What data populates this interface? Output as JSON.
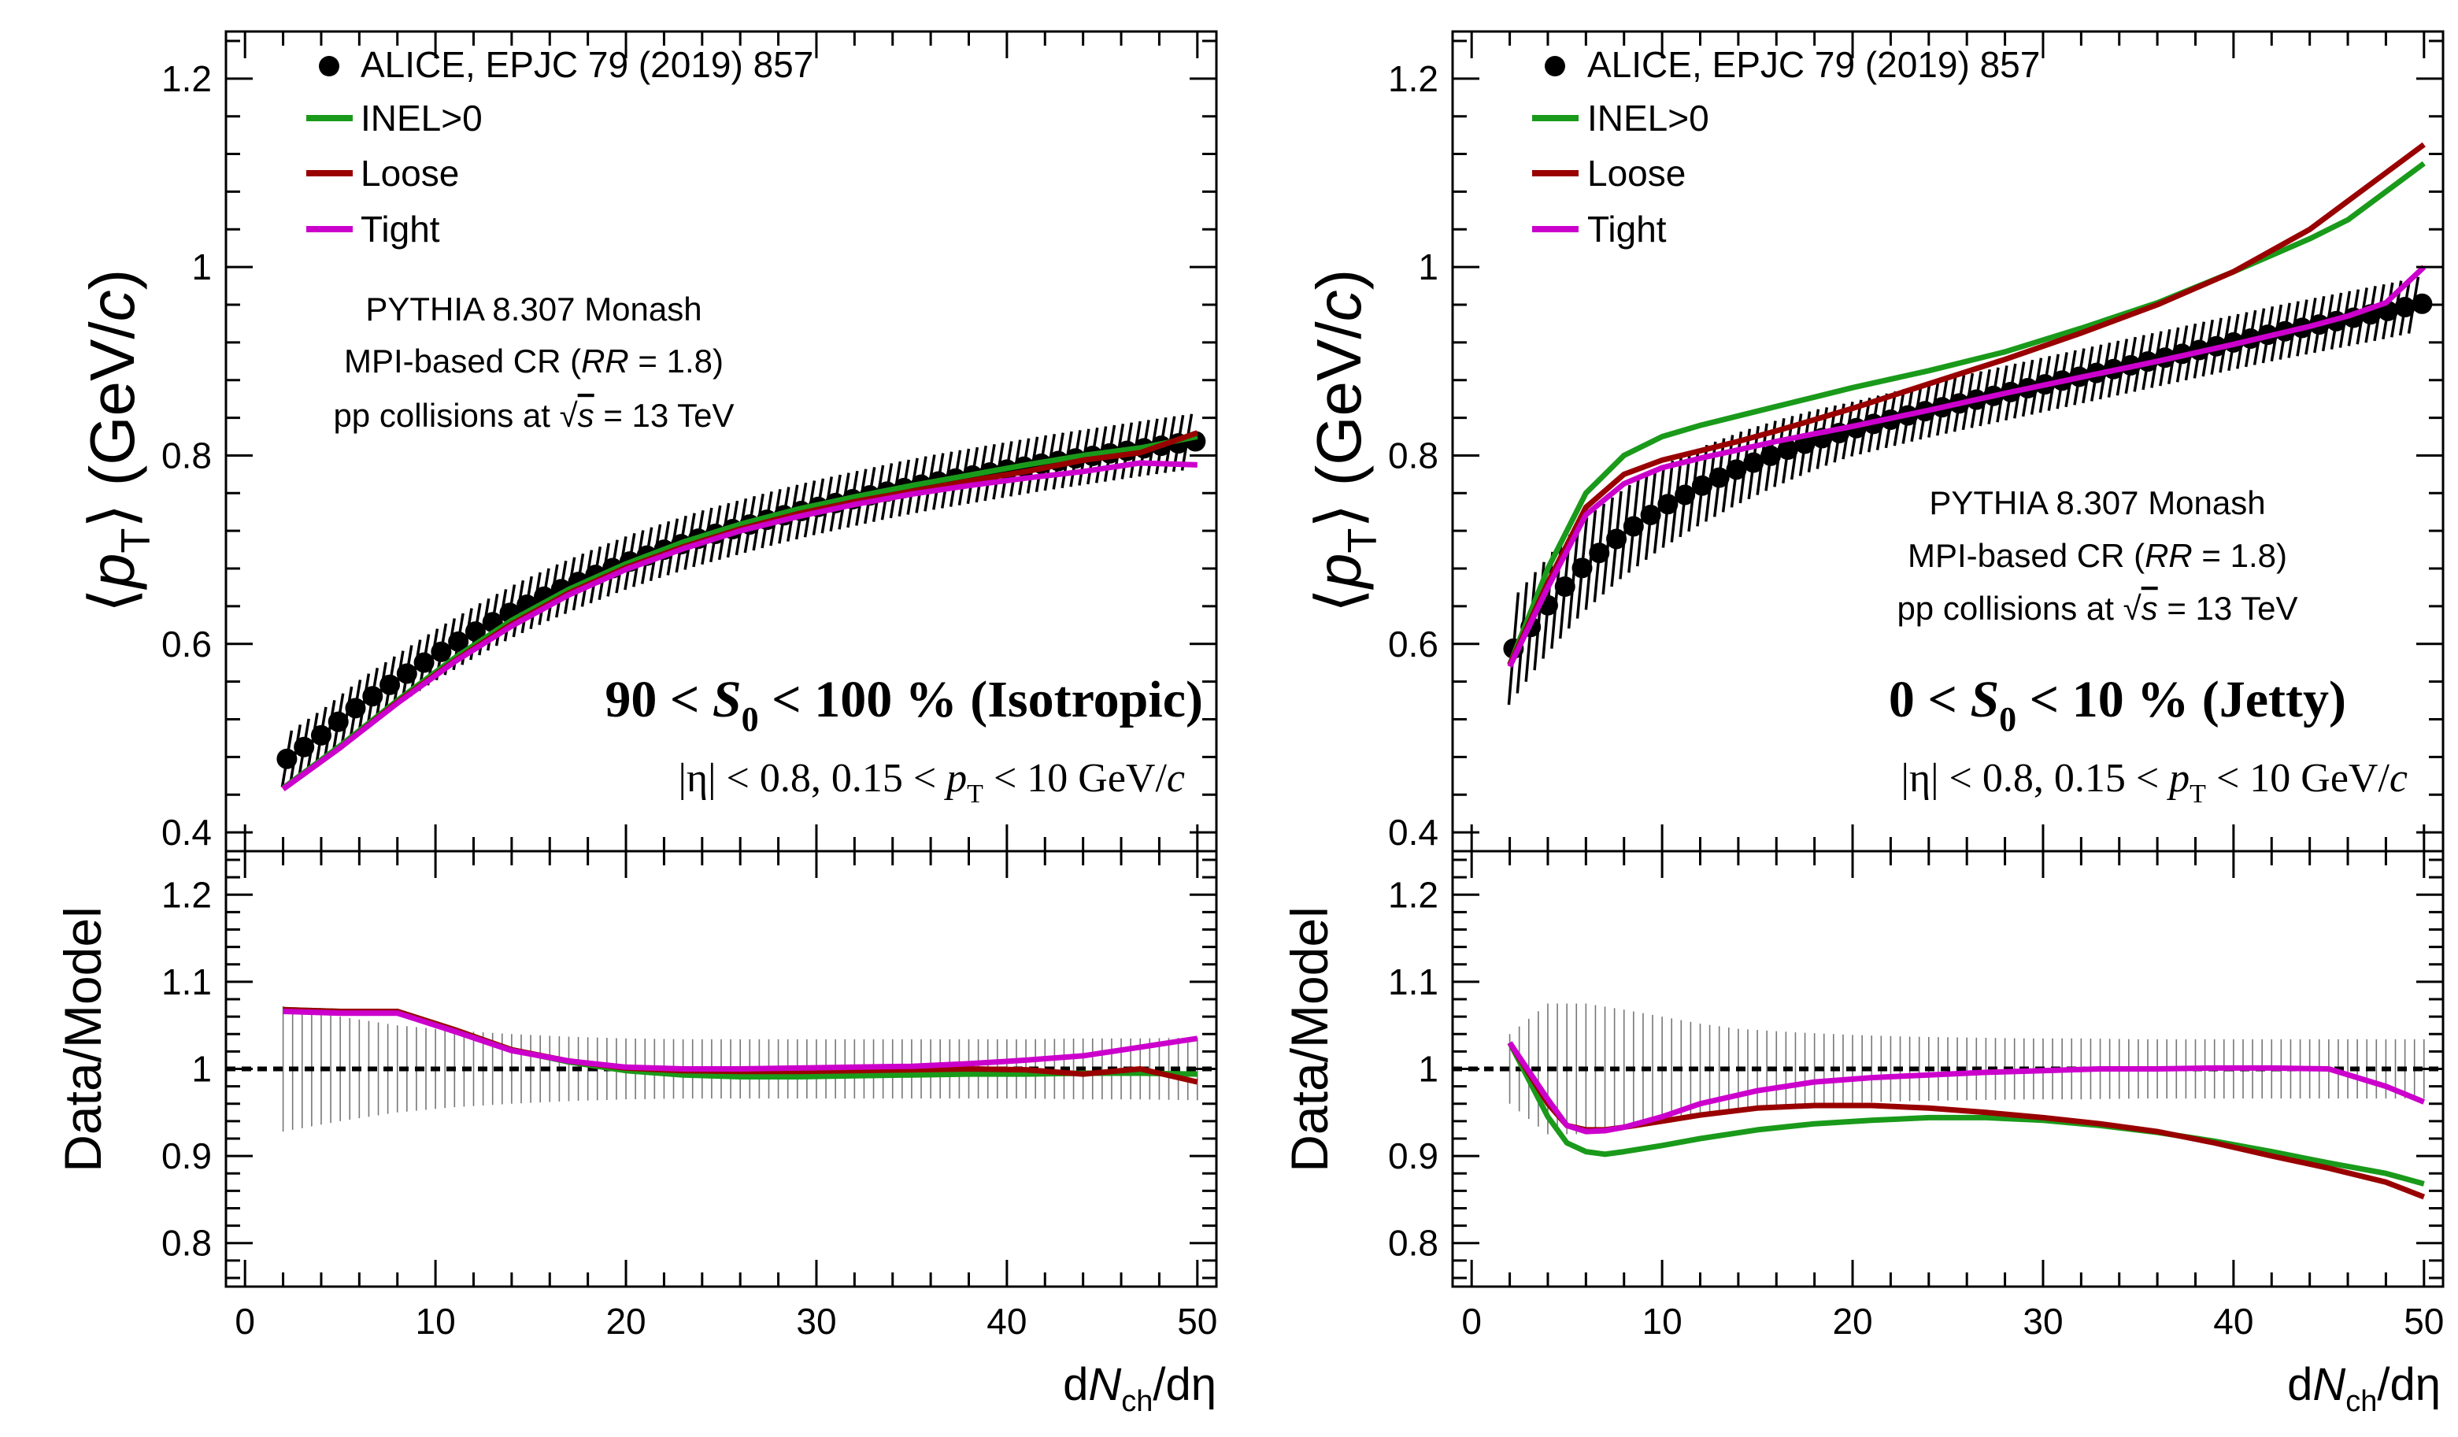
{
  "figure": {
    "left": {
      "legend": {
        "data": "ALICE, EPJC 79 (2019) 857",
        "inel": "INEL>0",
        "loose": "Loose",
        "tight": "Tight"
      },
      "info": {
        "line1": "PYTHIA 8.307 Monash",
        "line2_pre": "MPI-based CR (",
        "line2_rr": "RR",
        "line2_post": " = 1.8)",
        "line3_pre": "pp collisions at ",
        "line3_sqrt": "√",
        "line3_s": "s",
        "line3_post": " = 13 TeV"
      },
      "selection": {
        "pre": "90 < ",
        "sym": "S",
        "sub": "0",
        "post": " < 100 % (Isotropic)"
      },
      "cuts": {
        "eta": "|η| < 0.8, 0.15 < ",
        "pt": "p",
        "ptsub": "T",
        "post": " < 10 GeV/",
        "c": "c"
      }
    },
    "right": {
      "legend": {
        "data": "ALICE, EPJC 79 (2019) 857",
        "inel": "INEL>0",
        "loose": "Loose",
        "tight": "Tight"
      },
      "info": {
        "line1": "PYTHIA 8.307 Monash",
        "line2_pre": "MPI-based CR (",
        "line2_rr": "RR",
        "line2_post": " = 1.8)",
        "line3_pre": "pp collisions at ",
        "line3_sqrt": "√",
        "line3_s": "s",
        "line3_post": " = 13 TeV"
      },
      "selection": {
        "pre": "0 < ",
        "sym": "S",
        "sub": "0",
        "post": " < 10 % (Jetty)"
      },
      "cuts": {
        "eta": "|η| < 0.8, 0.15 < ",
        "pt": "p",
        "ptsub": "T",
        "post": " < 10 GeV/",
        "c": "c"
      }
    },
    "ylabel_top": {
      "open": "⟨",
      "p": "p",
      "sub": "T",
      "close": "⟩ (GeV/",
      "c": "c",
      "end": ")"
    },
    "ylabel_bottom": "Data/Model",
    "xlabel": {
      "d1": "d",
      "n": "N",
      "sub": "ch",
      "rest": "/dη"
    }
  },
  "colors": {
    "data": "#000000",
    "inel": "#1a9a1a",
    "loose": "#990000",
    "tight": "#cc00cc",
    "band": "#777777"
  },
  "chart_data": [
    {
      "type": "line",
      "panel": "left-top",
      "xlabel": "dNch/dη",
      "ylabel": "⟨pT⟩ (GeV/c)",
      "xlim": [
        -1,
        51
      ],
      "ylim": [
        0.38,
        1.25
      ],
      "xticks": [
        "0",
        "10",
        "20",
        "30",
        "40",
        "50"
      ],
      "yticks": [
        "0.4",
        "0.6",
        "0.8",
        "1",
        "1.2"
      ],
      "data_points": {
        "x": [
          2.2,
          4,
          6,
          8,
          10,
          12,
          14,
          16,
          18,
          20,
          22,
          24,
          26,
          28,
          30,
          32,
          34,
          36,
          38,
          40,
          42,
          44,
          46,
          48,
          49.8
        ],
        "y": [
          0.478,
          0.503,
          0.535,
          0.562,
          0.588,
          0.612,
          0.634,
          0.653,
          0.67,
          0.686,
          0.7,
          0.713,
          0.724,
          0.735,
          0.745,
          0.754,
          0.763,
          0.771,
          0.778,
          0.785,
          0.792,
          0.798,
          0.804,
          0.81,
          0.815
        ],
        "err": 0.03
      },
      "series": [
        {
          "name": "INEL>0",
          "x": [
            2,
            5,
            8,
            11,
            14,
            17,
            20,
            23,
            26,
            29,
            32,
            35,
            38,
            41,
            44,
            47,
            50
          ],
          "y": [
            0.447,
            0.492,
            0.54,
            0.585,
            0.625,
            0.658,
            0.685,
            0.708,
            0.727,
            0.743,
            0.756,
            0.768,
            0.779,
            0.79,
            0.8,
            0.808,
            0.82
          ]
        },
        {
          "name": "Loose",
          "x": [
            2,
            5,
            8,
            11,
            14,
            17,
            20,
            23,
            26,
            29,
            32,
            35,
            38,
            41,
            44,
            47,
            50
          ],
          "y": [
            0.446,
            0.49,
            0.538,
            0.582,
            0.621,
            0.654,
            0.681,
            0.703,
            0.722,
            0.738,
            0.751,
            0.762,
            0.773,
            0.783,
            0.795,
            0.803,
            0.824
          ]
        },
        {
          "name": "Tight",
          "x": [
            2,
            5,
            8,
            11,
            14,
            17,
            20,
            23,
            26,
            29,
            32,
            35,
            38,
            41,
            44,
            47,
            50
          ],
          "y": [
            0.446,
            0.49,
            0.537,
            0.581,
            0.619,
            0.652,
            0.679,
            0.701,
            0.72,
            0.735,
            0.748,
            0.759,
            0.768,
            0.776,
            0.783,
            0.792,
            0.79
          ]
        }
      ]
    },
    {
      "type": "line",
      "panel": "left-bottom",
      "xlabel": "dNch/dη",
      "ylabel": "Data/Model",
      "xlim": [
        -1,
        51
      ],
      "ylim": [
        0.75,
        1.25
      ],
      "xticks": [
        "0",
        "10",
        "20",
        "30",
        "40",
        "50"
      ],
      "yticks": [
        "0.8",
        "0.9",
        "1",
        "1.1",
        "1.2"
      ],
      "reference": 1.0,
      "band_err": [
        0.072,
        0.06,
        0.05,
        0.044,
        0.04,
        0.037,
        0.035,
        0.034,
        0.034,
        0.034,
        0.034,
        0.034,
        0.034,
        0.034,
        0.035,
        0.035,
        0.036
      ],
      "band_x": [
        2,
        5,
        8,
        11,
        14,
        17,
        20,
        23,
        26,
        29,
        32,
        35,
        38,
        41,
        44,
        47,
        50
      ],
      "series": [
        {
          "name": "INEL>0",
          "x": [
            2,
            5,
            8,
            11,
            14,
            17,
            20,
            23,
            26,
            29,
            32,
            35,
            38,
            41,
            44,
            47,
            50
          ],
          "y": [
            1.068,
            1.066,
            1.066,
            1.045,
            1.022,
            1.008,
            0.998,
            0.993,
            0.991,
            0.991,
            0.992,
            0.993,
            0.994,
            0.994,
            0.995,
            0.995,
            0.994
          ]
        },
        {
          "name": "Loose",
          "x": [
            2,
            5,
            8,
            11,
            14,
            17,
            20,
            23,
            26,
            29,
            32,
            35,
            38,
            41,
            44,
            47,
            50
          ],
          "y": [
            1.068,
            1.066,
            1.066,
            1.045,
            1.022,
            1.009,
            1.001,
            0.998,
            0.997,
            0.997,
            0.998,
            0.999,
            1.0,
            0.999,
            0.994,
            1.0,
            0.985
          ]
        },
        {
          "name": "Tight",
          "x": [
            2,
            5,
            8,
            11,
            14,
            17,
            20,
            23,
            26,
            29,
            32,
            35,
            38,
            41,
            44,
            47,
            50
          ],
          "y": [
            1.066,
            1.064,
            1.064,
            1.043,
            1.021,
            1.009,
            1.002,
            1.0,
            1.0,
            1.001,
            1.002,
            1.003,
            1.006,
            1.01,
            1.015,
            1.025,
            1.035
          ]
        }
      ]
    },
    {
      "type": "line",
      "panel": "right-top",
      "xlabel": "dNch/dη",
      "ylabel": "⟨pT⟩ (GeV/c)",
      "xlim": [
        -1,
        51
      ],
      "ylim": [
        0.38,
        1.25
      ],
      "xticks": [
        "0",
        "10",
        "20",
        "30",
        "40",
        "50"
      ],
      "yticks": [
        "0.4",
        "0.6",
        "0.8",
        "1",
        "1.2"
      ],
      "data_points": {
        "x": [
          2.2,
          4,
          6,
          8,
          10,
          12,
          14,
          16,
          18,
          20,
          22,
          24,
          26,
          28,
          30,
          32,
          34,
          36,
          38,
          40,
          42,
          44,
          46,
          48,
          49.8
        ],
        "y": [
          0.595,
          0.641,
          0.685,
          0.718,
          0.745,
          0.767,
          0.786,
          0.802,
          0.816,
          0.828,
          0.838,
          0.848,
          0.857,
          0.866,
          0.875,
          0.884,
          0.893,
          0.902,
          0.911,
          0.92,
          0.929,
          0.937,
          0.945,
          0.953,
          0.961
        ],
        "err_first": 0.06,
        "err_last": 0.03
      },
      "series": [
        {
          "name": "INEL>0",
          "x": [
            2,
            4,
            6,
            8,
            10,
            12,
            14,
            16,
            18,
            20,
            24,
            28,
            32,
            36,
            40,
            44,
            46,
            48,
            50
          ],
          "y": [
            0.578,
            0.68,
            0.76,
            0.8,
            0.82,
            0.832,
            0.842,
            0.852,
            0.862,
            0.872,
            0.89,
            0.91,
            0.935,
            0.962,
            0.995,
            1.03,
            1.05,
            1.08,
            1.11
          ]
        },
        {
          "name": "Loose",
          "x": [
            2,
            4,
            6,
            8,
            10,
            12,
            14,
            16,
            18,
            20,
            24,
            28,
            32,
            36,
            40,
            44,
            46,
            48,
            50
          ],
          "y": [
            0.578,
            0.665,
            0.745,
            0.78,
            0.795,
            0.805,
            0.815,
            0.826,
            0.838,
            0.85,
            0.876,
            0.902,
            0.93,
            0.96,
            0.995,
            1.04,
            1.07,
            1.1,
            1.13
          ]
        },
        {
          "name": "Tight",
          "x": [
            2,
            4,
            6,
            8,
            10,
            12,
            14,
            16,
            18,
            20,
            24,
            28,
            32,
            36,
            40,
            44,
            46,
            48,
            50
          ],
          "y": [
            0.576,
            0.66,
            0.737,
            0.77,
            0.787,
            0.797,
            0.806,
            0.815,
            0.823,
            0.831,
            0.848,
            0.866,
            0.883,
            0.9,
            0.918,
            0.937,
            0.948,
            0.962,
            1.0
          ]
        }
      ]
    },
    {
      "type": "line",
      "panel": "right-bottom",
      "xlabel": "dNch/dη",
      "ylabel": "Data/Model",
      "xlim": [
        -1,
        51
      ],
      "ylim": [
        0.75,
        1.25
      ],
      "xticks": [
        "0",
        "10",
        "20",
        "30",
        "40",
        "50"
      ],
      "yticks": [
        "0.8",
        "0.9",
        "1",
        "1.1",
        "1.2"
      ],
      "reference": 1.0,
      "band_err": [
        0.04,
        0.075,
        0.075,
        0.068,
        0.06,
        0.052,
        0.046,
        0.042,
        0.039,
        0.037,
        0.036,
        0.035,
        0.035,
        0.034,
        0.034,
        0.034,
        0.034
      ],
      "band_x": [
        2,
        4,
        6,
        8,
        10,
        12,
        14,
        17,
        20,
        23,
        26,
        29,
        32,
        35,
        40,
        45,
        50
      ],
      "series": [
        {
          "name": "INEL>0",
          "x": [
            2,
            4,
            5,
            6,
            7,
            8,
            10,
            12,
            15,
            18,
            21,
            24,
            27,
            30,
            33,
            36,
            39,
            42,
            45,
            48,
            50
          ],
          "y": [
            1.03,
            0.945,
            0.915,
            0.905,
            0.902,
            0.905,
            0.912,
            0.92,
            0.93,
            0.937,
            0.941,
            0.944,
            0.944,
            0.941,
            0.935,
            0.927,
            0.917,
            0.905,
            0.892,
            0.88,
            0.868
          ]
        },
        {
          "name": "Loose",
          "x": [
            2,
            4,
            5,
            6,
            7,
            8,
            10,
            12,
            15,
            18,
            21,
            24,
            27,
            30,
            33,
            36,
            39,
            42,
            45,
            48,
            50
          ],
          "y": [
            1.03,
            0.96,
            0.935,
            0.93,
            0.93,
            0.933,
            0.94,
            0.947,
            0.955,
            0.958,
            0.958,
            0.955,
            0.95,
            0.944,
            0.937,
            0.928,
            0.915,
            0.9,
            0.886,
            0.87,
            0.853
          ]
        },
        {
          "name": "Tight",
          "x": [
            2,
            4,
            5,
            6,
            7,
            8,
            10,
            12,
            15,
            18,
            21,
            24,
            27,
            30,
            33,
            36,
            39,
            42,
            45,
            48,
            50
          ],
          "y": [
            1.03,
            0.965,
            0.935,
            0.928,
            0.929,
            0.933,
            0.945,
            0.96,
            0.975,
            0.985,
            0.99,
            0.993,
            0.996,
            0.998,
            1.0,
            1.0,
            1.001,
            1.001,
            1.0,
            0.98,
            0.962
          ]
        }
      ]
    }
  ]
}
